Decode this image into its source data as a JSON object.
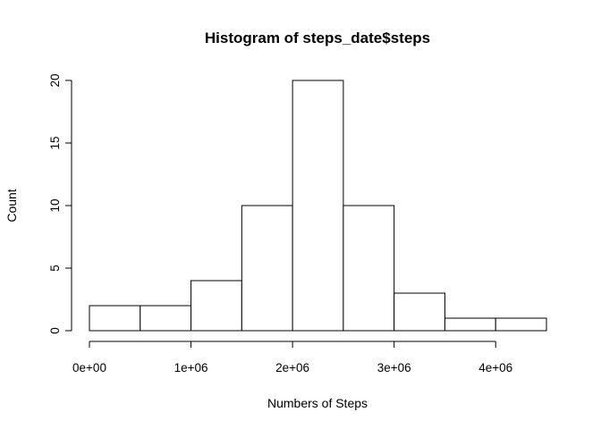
{
  "chart_data": {
    "type": "bar",
    "title": "Histogram of steps_date$steps",
    "xlabel": "Numbers of Steps",
    "ylabel": "Count",
    "bins": [
      {
        "start": 0,
        "end": 500000,
        "count": 2
      },
      {
        "start": 500000,
        "end": 1000000,
        "count": 2
      },
      {
        "start": 1000000,
        "end": 1500000,
        "count": 4
      },
      {
        "start": 1500000,
        "end": 2000000,
        "count": 10
      },
      {
        "start": 2000000,
        "end": 2500000,
        "count": 20
      },
      {
        "start": 2500000,
        "end": 3000000,
        "count": 10
      },
      {
        "start": 3000000,
        "end": 3500000,
        "count": 3
      },
      {
        "start": 3500000,
        "end": 4000000,
        "count": 1
      },
      {
        "start": 4000000,
        "end": 4500000,
        "count": 1
      }
    ],
    "xlim": [
      0,
      4500000
    ],
    "ylim": [
      0,
      20
    ],
    "x_ticks": [
      {
        "value": 0,
        "label": "0e+00"
      },
      {
        "value": 1000000,
        "label": "1e+06"
      },
      {
        "value": 2000000,
        "label": "2e+06"
      },
      {
        "value": 3000000,
        "label": "3e+06"
      },
      {
        "value": 4000000,
        "label": "4e+06"
      }
    ],
    "y_ticks": [
      {
        "value": 0,
        "label": "0"
      },
      {
        "value": 5,
        "label": "5"
      },
      {
        "value": 10,
        "label": "10"
      },
      {
        "value": 15,
        "label": "15"
      },
      {
        "value": 20,
        "label": "20"
      }
    ],
    "grid": false,
    "legend": "none"
  }
}
